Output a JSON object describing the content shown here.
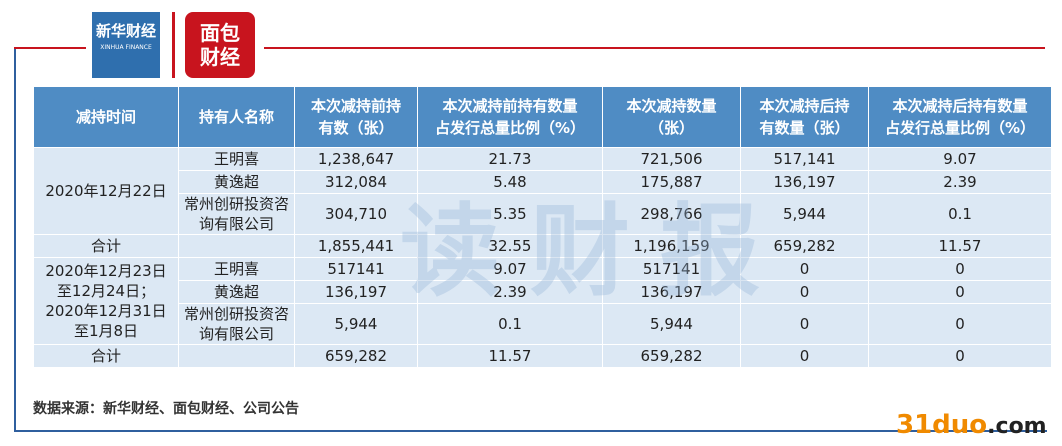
{
  "header": {
    "brand_cn": "新华财经",
    "brand_en": "XINHUA FINANCE",
    "partner": "面包财经"
  },
  "table": {
    "columns": [
      [
        "减持时间"
      ],
      [
        "持有人名称"
      ],
      [
        "本次减持前持",
        "有数（张）"
      ],
      [
        "本次减持前持有数量",
        "占发行总量比例（%）"
      ],
      [
        "本次减持数量",
        "（张）"
      ],
      [
        "本次减持后持",
        "有数量（张）"
      ],
      [
        "本次减持后持有数量",
        "占发行总量比例（%）"
      ]
    ],
    "groups": [
      {
        "date": [
          "2020年12月22日"
        ],
        "rows": [
          [
            "王明喜",
            "1,238,647",
            "21.73",
            "721,506",
            "517,141",
            "9.07"
          ],
          [
            "黄逸超",
            "312,084",
            "5.48",
            "175,887",
            "136,197",
            "2.39"
          ],
          [
            "常州创研投资咨询有限公司",
            "304,710",
            "5.35",
            "298,766",
            "5,944",
            "0.1"
          ]
        ],
        "total": {
          "label": "合计",
          "values": [
            "1,855,441",
            "32.55",
            "1,196,159",
            "659,282",
            "11.57"
          ]
        }
      },
      {
        "date": [
          "2020年12月23日",
          "至12月24日；",
          "2020年12月31日",
          "至1月8日"
        ],
        "rows": [
          [
            "王明喜",
            "517141",
            "9.07",
            "517141",
            "0",
            "0"
          ],
          [
            "黄逸超",
            "136,197",
            "2.39",
            "136,197",
            "0",
            "0"
          ],
          [
            "常州创研投资咨询有限公司",
            "5,944",
            "0.1",
            "5,944",
            "0",
            "0"
          ]
        ],
        "total": {
          "label": "合计",
          "values": [
            "659,282",
            "11.57",
            "659,282",
            "0",
            "0"
          ]
        }
      }
    ]
  },
  "source": "数据来源：新华财经、面包财经、公司公告",
  "watermark": "读财报",
  "site": {
    "name": "31duo",
    "tld": ".com"
  }
}
